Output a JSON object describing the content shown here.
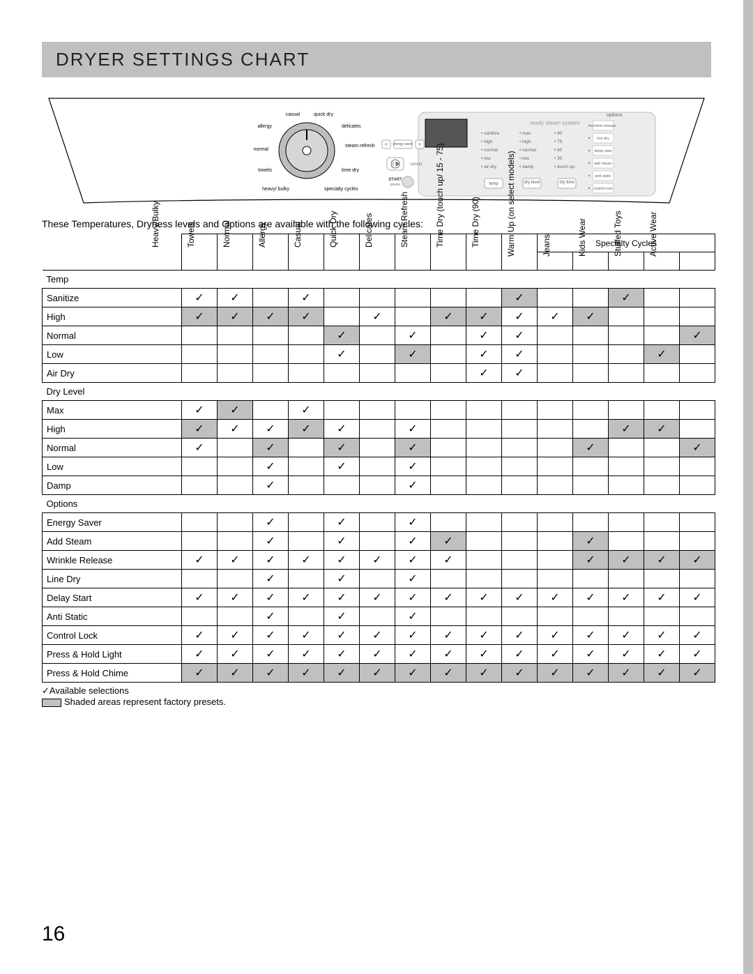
{
  "header": {
    "title": "DRYER SETTINGS CHART"
  },
  "intro": "These Temperatures, Dryness levels and Options are available with the following cycles:",
  "specialty_header": "Specialty Cycles",
  "columns": [
    "Heavy/Bulky",
    "Towels",
    "Normal",
    "Allergy",
    "Casual",
    "Quick Dry",
    "Delicates",
    "Steam Refresh",
    "Time Dry\n(touch up/ 15 - 75)",
    "Time Dry (90)",
    "Warm Up\n(on select models)",
    "Jeans",
    "Kids Wear",
    "Stuffed Toys",
    "Active Wear"
  ],
  "specialty_start_index": 10,
  "sections": [
    {
      "label": "Temp",
      "rows": [
        {
          "label": "Sanitize",
          "cells": [
            1,
            1,
            0,
            1,
            0,
            0,
            0,
            0,
            0,
            3,
            0,
            0,
            3,
            0,
            0
          ]
        },
        {
          "label": "High",
          "cells": [
            3,
            3,
            3,
            3,
            0,
            1,
            0,
            3,
            3,
            1,
            1,
            3,
            0,
            0,
            0
          ]
        },
        {
          "label": "Normal",
          "cells": [
            0,
            0,
            0,
            0,
            3,
            0,
            1,
            0,
            1,
            1,
            0,
            0,
            0,
            0,
            3
          ]
        },
        {
          "label": "Low",
          "cells": [
            0,
            0,
            0,
            0,
            1,
            0,
            3,
            0,
            1,
            1,
            0,
            0,
            0,
            3,
            0
          ]
        },
        {
          "label": "Air Dry",
          "cells": [
            0,
            0,
            0,
            0,
            0,
            0,
            0,
            0,
            1,
            1,
            0,
            0,
            0,
            0,
            0
          ]
        }
      ]
    },
    {
      "label": "Dry Level",
      "rows": [
        {
          "label": "Max",
          "cells": [
            1,
            3,
            0,
            1,
            0,
            0,
            0,
            0,
            0,
            0,
            0,
            0,
            0,
            0,
            0
          ]
        },
        {
          "label": "High",
          "cells": [
            3,
            1,
            1,
            3,
            1,
            0,
            1,
            0,
            0,
            0,
            0,
            0,
            3,
            3,
            0
          ]
        },
        {
          "label": "Normal",
          "cells": [
            1,
            0,
            3,
            0,
            3,
            0,
            3,
            0,
            0,
            0,
            0,
            3,
            0,
            0,
            3
          ]
        },
        {
          "label": "Low",
          "cells": [
            0,
            0,
            1,
            0,
            1,
            0,
            1,
            0,
            0,
            0,
            0,
            0,
            0,
            0,
            0
          ]
        },
        {
          "label": "Damp",
          "cells": [
            0,
            0,
            1,
            0,
            0,
            0,
            1,
            0,
            0,
            0,
            0,
            0,
            0,
            0,
            0
          ]
        }
      ]
    },
    {
      "label": "Options",
      "rows": [
        {
          "label": "Energy Saver",
          "cells": [
            0,
            0,
            1,
            0,
            1,
            0,
            1,
            0,
            0,
            0,
            0,
            0,
            0,
            0,
            0
          ]
        },
        {
          "label": "Add Steam",
          "cells": [
            0,
            0,
            1,
            0,
            1,
            0,
            1,
            3,
            0,
            0,
            0,
            3,
            0,
            0,
            0
          ]
        },
        {
          "label": "Wrinkle Release",
          "cells": [
            1,
            1,
            1,
            1,
            1,
            1,
            1,
            1,
            0,
            0,
            0,
            3,
            3,
            3,
            3
          ]
        },
        {
          "label": "Line Dry",
          "cells": [
            0,
            0,
            1,
            0,
            1,
            0,
            1,
            0,
            0,
            0,
            0,
            0,
            0,
            0,
            0
          ]
        },
        {
          "label": "Delay Start",
          "cells": [
            1,
            1,
            1,
            1,
            1,
            1,
            1,
            1,
            1,
            1,
            1,
            1,
            1,
            1,
            1
          ]
        },
        {
          "label": "Anti Static",
          "cells": [
            0,
            0,
            1,
            0,
            1,
            0,
            1,
            0,
            0,
            0,
            0,
            0,
            0,
            0,
            0
          ]
        },
        {
          "label": "Control Lock",
          "cells": [
            1,
            1,
            1,
            1,
            1,
            1,
            1,
            1,
            1,
            1,
            1,
            1,
            1,
            1,
            1
          ]
        },
        {
          "label": "Press & Hold Light",
          "cells": [
            1,
            1,
            1,
            1,
            1,
            1,
            1,
            1,
            1,
            1,
            1,
            1,
            1,
            1,
            1
          ]
        },
        {
          "label": "Press & Hold Chime",
          "cells": [
            3,
            3,
            3,
            3,
            3,
            3,
            3,
            3,
            3,
            3,
            3,
            3,
            3,
            3,
            3
          ]
        }
      ]
    }
  ],
  "legend": {
    "available": "Available selections",
    "shaded": "Shaded areas represent factory presets."
  },
  "page_number": "16",
  "panel": {
    "dial_labels": {
      "casual": "casual",
      "quickdry": "quick dry",
      "delicates": "delicates",
      "allergy": "allergy",
      "normal": "normal",
      "towels": "towels",
      "heavy": "heavy/\nbulky",
      "steam": "steam\nrefresh",
      "timedry": "time\ndry",
      "specialty": "specialty\ncycles"
    },
    "ready_steam": "ready steam system",
    "col1": [
      "sanitize",
      "high",
      "normal",
      "low",
      "air dry"
    ],
    "col2": [
      "max",
      "high",
      "normal",
      "low",
      "damp"
    ],
    "col3": [
      "90",
      "75",
      "60",
      "30",
      "touch\nup"
    ],
    "col_head": [
      "",
      "",
      "",
      ""
    ],
    "btn_temp": "temp",
    "btn_dry": "dry\nlevel",
    "btn_time": "dry\ntime",
    "start": "START",
    "pause": "pause",
    "cancel": "cancel",
    "energy": "energy\nsaver",
    "options_title": "options",
    "options": [
      "wrinkle\nrelease",
      "line\ndry",
      "delay\nstart",
      "add\nsteam",
      "anti\nstatic",
      "control\nlock"
    ]
  },
  "colors": {
    "shade": "#c0c0c0",
    "border": "#000000",
    "text": "#000000",
    "panel_outline": "#000000",
    "panel_light": "#e8e8e8",
    "panel_dark": "#9a9a9a"
  }
}
